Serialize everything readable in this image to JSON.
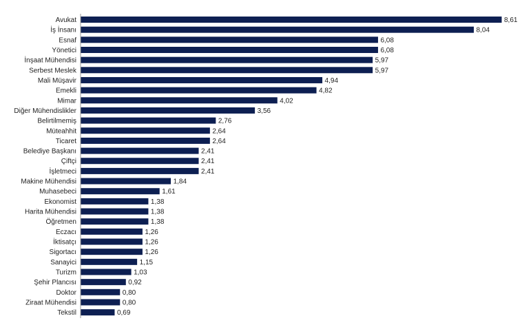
{
  "chart_data": {
    "type": "bar",
    "orientation": "horizontal",
    "bar_color": "#0d1f52",
    "axis_color": "#9a9a9a",
    "text_color": "#222222",
    "categories": [
      "Avukat",
      "İş İnsanı",
      "Esnaf",
      "Yönetici",
      "İnşaat Mühendisi",
      "Serbest Meslek",
      "Mali Müşavir",
      "Emekli",
      "Mimar",
      "Diğer Mühendislikler",
      "Belirtilmemiş",
      "Müteahhit",
      "Ticaret",
      "Belediye Başkanı",
      "Çiftçi",
      "İşletmeci",
      "Makine Mühendisi",
      "Muhasebeci",
      "Ekonomist",
      "Harita Mühendisi",
      "Öğretmen",
      "Eczacı",
      "İktisatçı",
      "Sigortacı",
      "Sanayici",
      "Turizm",
      "Şehir Plancısı",
      "Doktor",
      "Ziraat Mühendisi",
      "Tekstil"
    ],
    "values": [
      8.61,
      8.04,
      6.08,
      6.08,
      5.97,
      5.97,
      4.94,
      4.82,
      4.02,
      3.56,
      2.76,
      2.64,
      2.64,
      2.41,
      2.41,
      2.41,
      1.84,
      1.61,
      1.38,
      1.38,
      1.38,
      1.26,
      1.26,
      1.26,
      1.15,
      1.03,
      0.92,
      0.8,
      0.8,
      0.69
    ],
    "value_labels": [
      "8,61",
      "8,04",
      "6,08",
      "6,08",
      "5,97",
      "5,97",
      "4,94",
      "4,82",
      "4,02",
      "3,56",
      "2,76",
      "2,64",
      "2,64",
      "2,41",
      "2,41",
      "2,41",
      "1,84",
      "1,61",
      "1,38",
      "1,38",
      "1,38",
      "1,26",
      "1,26",
      "1,26",
      "1,15",
      "1,03",
      "0,92",
      "0,80",
      "0,80",
      "0,69"
    ],
    "xlim": [
      0,
      8.61
    ],
    "grid": false,
    "legend": "none",
    "title": "",
    "xlabel": "",
    "ylabel": ""
  }
}
